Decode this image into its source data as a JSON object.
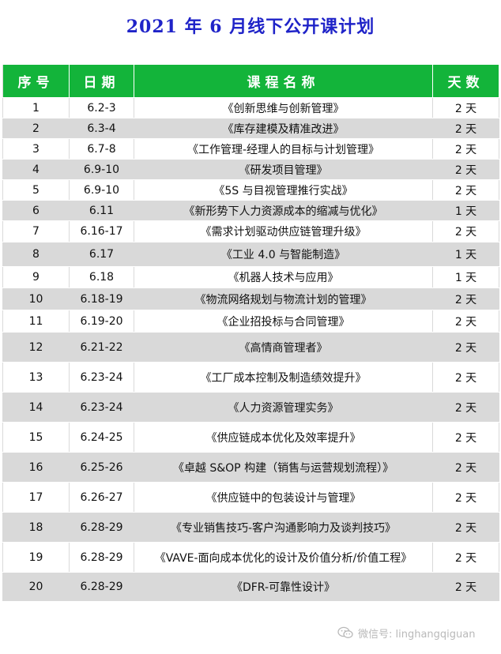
{
  "title": "2021 年 6 月线下公开课计划",
  "table": {
    "headers": [
      "序号",
      "日期",
      "课程名称",
      "天数"
    ],
    "rows": [
      {
        "no": "1",
        "date": "6.2-3",
        "course": "《创新思维与创新管理》",
        "days": "2 天"
      },
      {
        "no": "2",
        "date": "6.3-4",
        "course": "《库存建模及精准改进》",
        "days": "2 天"
      },
      {
        "no": "3",
        "date": "6.7-8",
        "course": "《工作管理-经理人的目标与计划管理》",
        "days": "2 天"
      },
      {
        "no": "4",
        "date": "6.9-10",
        "course": "《研发项目管理》",
        "days": "2 天"
      },
      {
        "no": "5",
        "date": "6.9-10",
        "course": "《5S 与目视管理推行实战》",
        "days": "2 天"
      },
      {
        "no": "6",
        "date": "6.11",
        "course": "《新形势下人力资源成本的缩减与优化》",
        "days": "1 天"
      },
      {
        "no": "7",
        "date": "6.16-17",
        "course": "《需求计划驱动供应链管理升级》",
        "days": "2 天"
      },
      {
        "no": "8",
        "date": "6.17",
        "course": "《工业 4.0 与智能制造》",
        "days": "1 天"
      },
      {
        "no": "9",
        "date": "6.18",
        "course": "《机器人技术与应用》",
        "days": "1 天"
      },
      {
        "no": "10",
        "date": "6.18-19",
        "course": "《物流网络规划与物流计划的管理》",
        "days": "2 天"
      },
      {
        "no": "11",
        "date": "6.19-20",
        "course": "《企业招投标与合同管理》",
        "days": "2 天"
      },
      {
        "no": "12",
        "date": "6.21-22",
        "course": "《高情商管理者》",
        "days": "2 天"
      },
      {
        "no": "13",
        "date": "6.23-24",
        "course": "《工厂成本控制及制造绩效提升》",
        "days": "2 天"
      },
      {
        "no": "14",
        "date": "6.23-24",
        "course": "《人力资源管理实务》",
        "days": "2 天"
      },
      {
        "no": "15",
        "date": "6.24-25",
        "course": "《供应链成本优化及效率提升》",
        "days": "2 天"
      },
      {
        "no": "16",
        "date": "6.25-26",
        "course": "《卓越 S&OP 构建（销售与运营规划流程）》",
        "days": "2 天"
      },
      {
        "no": "17",
        "date": "6.26-27",
        "course": "《供应链中的包装设计与管理》",
        "days": "2 天"
      },
      {
        "no": "18",
        "date": "6.28-29",
        "course": "《专业销售技巧-客户沟通影响力及谈判技巧》",
        "days": "2 天"
      },
      {
        "no": "19",
        "date": "6.28-29",
        "course": "《VAVE-面向成本优化的设计及价值分析/价值工程》",
        "days": "2 天"
      },
      {
        "no": "20",
        "date": "6.28-29",
        "course": "《DFR-可靠性设计》",
        "days": "2 天"
      }
    ]
  },
  "watermark": {
    "icon": "wechat-icon",
    "text": "微信号: linghangqiguan"
  },
  "colors": {
    "title": "#1f23c8",
    "header_bg": "#13b43a",
    "header_text": "#ffffff",
    "alt_row_bg": "#d9d9d9"
  }
}
